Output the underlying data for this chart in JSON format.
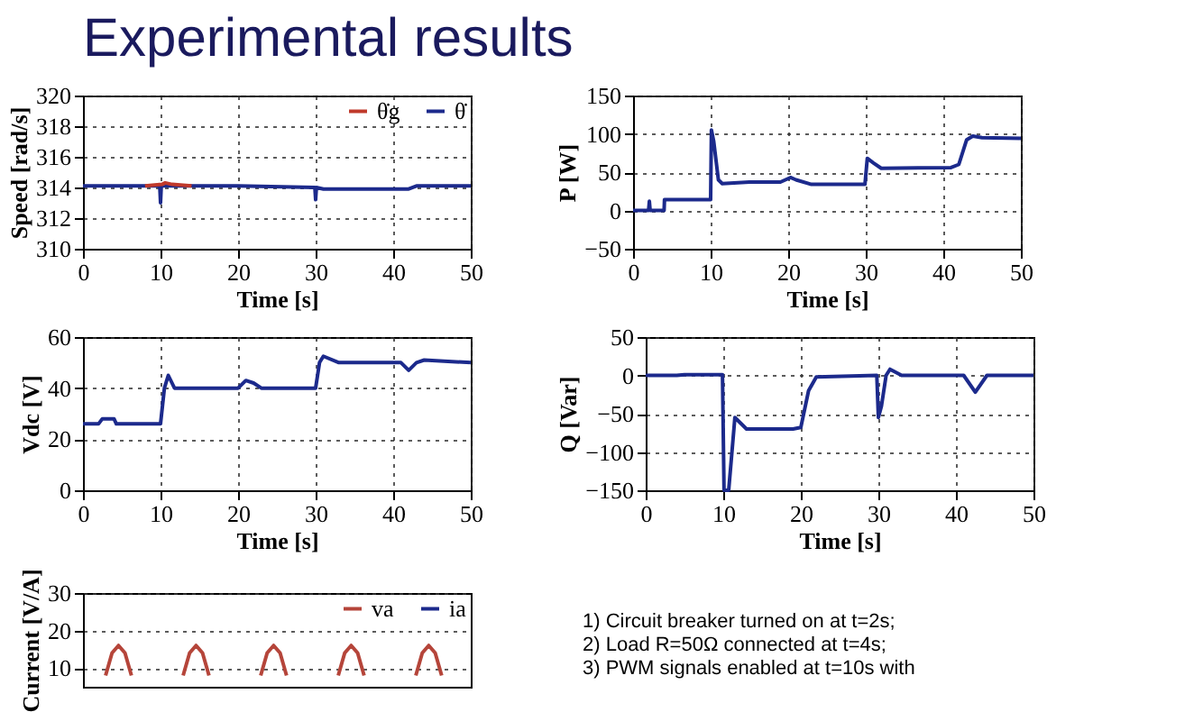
{
  "chart_data": [
    {
      "type": "other",
      "title": "Experimental results"
    },
    {
      "type": "line",
      "xlabel": "Time [s]",
      "ylabel": "Speed [rad/s]",
      "xlim": [
        0,
        50
      ],
      "xticks": [
        0,
        10,
        20,
        30,
        40,
        50
      ],
      "ylim": [
        310,
        320
      ],
      "yticks": [
        310,
        312,
        314,
        316,
        318,
        320
      ],
      "grid": true,
      "legend": "top right",
      "line_style": "solid",
      "marker": "none",
      "series": [
        {
          "name": "θ̇g",
          "color": "#c0392b",
          "x": [
            8,
            10.2,
            10.6,
            11.5,
            14
          ],
          "values": [
            314.1,
            314.2,
            314.3,
            314.2,
            314.1
          ]
        },
        {
          "name": "θ̇",
          "color": "#1c2a8c",
          "x": [
            0,
            9.9,
            10,
            10.1,
            20,
            29.9,
            30,
            30.1,
            31,
            42,
            43,
            50
          ],
          "values": [
            314.1,
            314.1,
            313.0,
            314.1,
            314.1,
            314.0,
            313.2,
            314.0,
            313.9,
            313.9,
            314.1,
            314.1
          ]
        }
      ]
    },
    {
      "type": "line",
      "xlabel": "Time [s]",
      "ylabel": "P [W]",
      "xlim": [
        0,
        50
      ],
      "xticks": [
        0,
        10,
        20,
        30,
        40,
        50
      ],
      "ylim": [
        -50,
        150
      ],
      "yticks": [
        -50,
        0,
        50,
        100,
        150
      ],
      "grid": true,
      "line_style": "solid",
      "marker": "none",
      "series": [
        {
          "color": "#1c2a8c",
          "x": [
            0,
            2,
            2.1,
            2.2,
            4,
            4.05,
            10,
            10.1,
            10.4,
            11,
            11.5,
            15,
            19,
            20.3,
            21,
            23,
            29.9,
            30.2,
            31,
            32,
            41,
            42,
            43,
            43.8,
            45,
            50
          ],
          "values": [
            0,
            0,
            12,
            0,
            0,
            14,
            14,
            105,
            90,
            40,
            35,
            37,
            37,
            43,
            40,
            34,
            34,
            68,
            62,
            55,
            56,
            60,
            92,
            97,
            95,
            94
          ]
        }
      ]
    },
    {
      "type": "line",
      "xlabel": "Time [s]",
      "ylabel": "Vdc [V]",
      "xlim": [
        0,
        50
      ],
      "xticks": [
        0,
        10,
        20,
        30,
        40,
        50
      ],
      "ylim": [
        0,
        60
      ],
      "yticks": [
        0,
        20,
        40,
        60
      ],
      "grid": true,
      "line_style": "solid",
      "marker": "none",
      "series": [
        {
          "color": "#1c2a8c",
          "x": [
            0,
            2,
            2.5,
            4,
            4.3,
            10,
            10.5,
            11,
            11.8,
            20,
            21,
            22,
            23,
            30,
            30.5,
            31,
            33,
            41,
            42,
            43,
            44,
            50
          ],
          "values": [
            26,
            26,
            28,
            28,
            26,
            26,
            40,
            45,
            40,
            40,
            43,
            42,
            40,
            40,
            50,
            52.5,
            50,
            50,
            47,
            50,
            51,
            50
          ]
        }
      ]
    },
    {
      "type": "line",
      "xlabel": "Time [s]",
      "ylabel": "Q [Var]",
      "xlim": [
        0,
        50
      ],
      "xticks": [
        0,
        10,
        20,
        30,
        40,
        50
      ],
      "ylim": [
        -150,
        50
      ],
      "yticks": [
        -150,
        -100,
        -50,
        0,
        50
      ],
      "grid": true,
      "line_style": "solid",
      "marker": "none",
      "series": [
        {
          "color": "#1c2a8c",
          "x": [
            0,
            4,
            5,
            9.9,
            10.1,
            10.7,
            11.5,
            13,
            19,
            20,
            21,
            22,
            29.8,
            30,
            30.4,
            31,
            31.5,
            33,
            41,
            42.5,
            44,
            50
          ],
          "values": [
            0,
            0,
            1,
            1,
            -150,
            -150,
            -55,
            -70,
            -70,
            -68,
            -20,
            -2,
            0,
            -55,
            -40,
            0,
            8,
            0,
            0,
            -22,
            0,
            0
          ]
        }
      ]
    },
    {
      "type": "line",
      "ylabel": "Current [V/A]",
      "categories": [
        null,
        null,
        null,
        null,
        null,
        null,
        null,
        null,
        null,
        null,
        null,
        null,
        null,
        null,
        null,
        null,
        null,
        null,
        null,
        null,
        null,
        null,
        null,
        null,
        null,
        null,
        null,
        null,
        null,
        null,
        null,
        null,
        null,
        null,
        null,
        null,
        null,
        null,
        null,
        null,
        null,
        null,
        null,
        null,
        null,
        null,
        null,
        null,
        null,
        null,
        null,
        null,
        null,
        null,
        null,
        null,
        null,
        null,
        null,
        null
      ],
      "ylim": [
        5,
        30
      ],
      "yticks": [
        10,
        20,
        30
      ],
      "tick_labels": "y",
      "grid": "y",
      "legend": "top right",
      "line_style": "solid",
      "marker": "none",
      "series": [
        {
          "name": "va",
          "color": "#b5453a",
          "values": [
            null,
            null,
            null,
            8,
            14,
            16,
            14,
            8,
            null,
            null,
            null,
            null,
            null,
            null,
            null,
            8,
            14,
            16,
            14,
            8,
            null,
            null,
            null,
            null,
            null,
            null,
            null,
            8,
            14,
            16,
            14,
            8,
            null,
            null,
            null,
            null,
            null,
            null,
            null,
            8,
            14,
            16,
            14,
            8,
            null,
            null,
            null,
            null,
            null,
            null,
            null,
            8,
            14,
            16,
            14,
            8,
            null,
            null,
            null,
            null
          ]
        },
        {
          "name": "ia",
          "color": "#1c2a8c",
          "values": [
            null,
            null,
            null,
            null,
            null,
            null,
            null,
            null,
            null,
            null,
            null,
            null,
            null,
            null,
            null,
            null,
            null,
            null,
            null,
            null,
            null,
            null,
            null,
            null,
            null,
            null,
            null,
            null,
            null,
            null,
            null,
            null,
            null,
            null,
            null,
            null,
            null,
            null,
            null,
            null,
            null,
            null,
            null,
            null,
            null,
            null,
            null,
            null,
            null,
            null,
            null,
            null,
            null,
            null,
            null,
            null,
            null,
            null,
            null,
            null
          ]
        }
      ]
    },
    {
      "type": "other",
      "annotations": [
        "1) Circuit breaker turned on at t=2s;",
        "2) Load R=50Ω connected at t=4s;",
        "3) PWM signals enabled at t=10s with"
      ]
    }
  ]
}
